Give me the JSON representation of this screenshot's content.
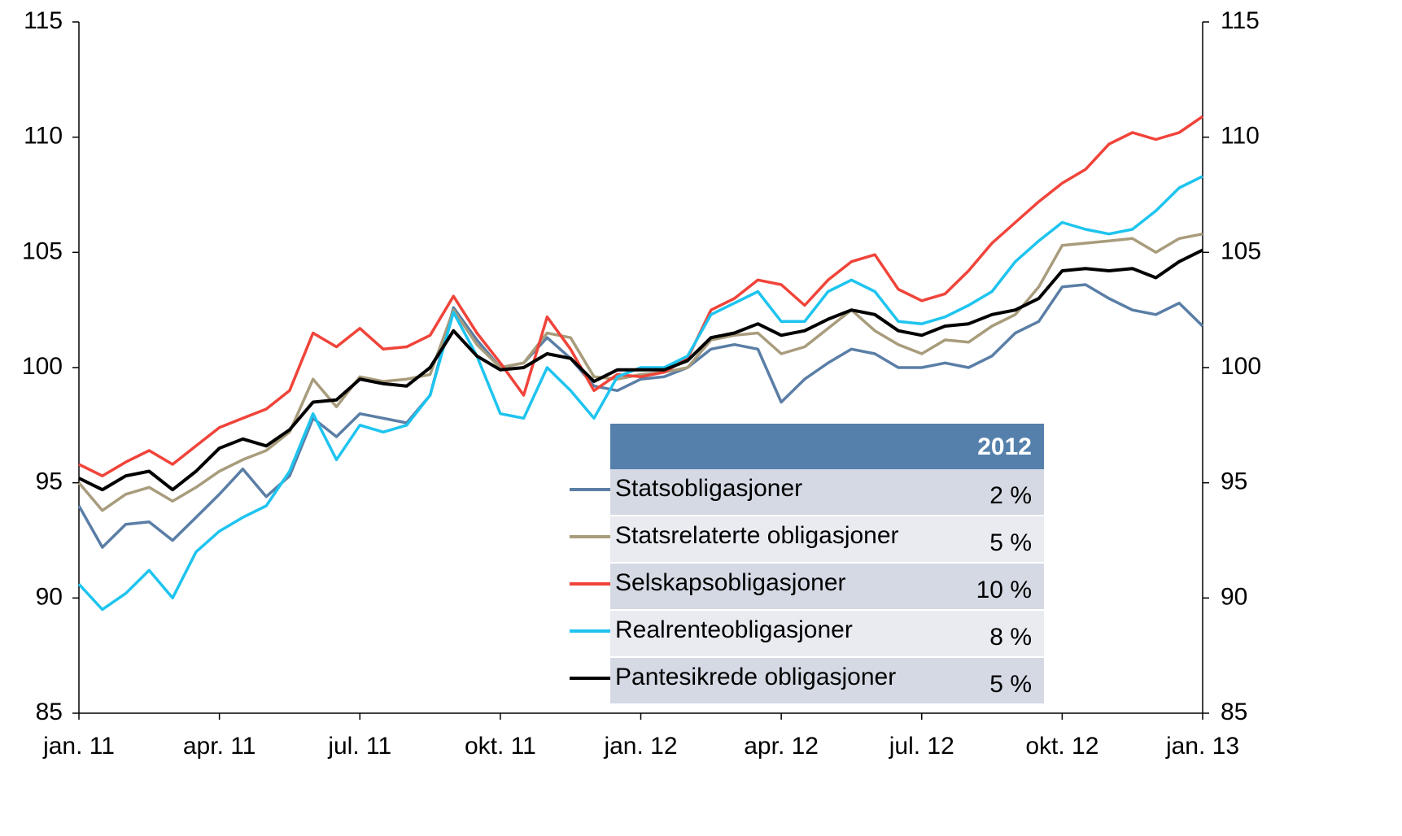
{
  "chart_data": {
    "type": "line",
    "x": [
      0,
      0.5,
      1,
      1.5,
      2,
      2.5,
      3,
      3.5,
      4,
      4.5,
      5,
      5.5,
      6,
      6.5,
      7,
      7.5,
      8,
      8.5,
      9,
      9.5,
      10,
      10.5,
      11,
      11.5,
      12,
      12.5,
      13,
      13.5,
      14,
      14.5,
      15,
      15.5,
      16,
      16.5,
      17,
      17.5,
      18,
      18.5,
      19,
      19.5,
      20,
      20.5,
      21,
      21.5,
      22,
      22.5,
      23,
      23.5,
      24
    ],
    "xlim": [
      0,
      24
    ],
    "xticks": [
      {
        "value": 0,
        "label": "jan. 11"
      },
      {
        "value": 3,
        "label": "apr. 11"
      },
      {
        "value": 6,
        "label": "jul. 11"
      },
      {
        "value": 9,
        "label": "okt. 11"
      },
      {
        "value": 12,
        "label": "jan. 12"
      },
      {
        "value": 15,
        "label": "apr. 12"
      },
      {
        "value": 18,
        "label": "jul. 12"
      },
      {
        "value": 21,
        "label": "okt. 12"
      },
      {
        "value": 24,
        "label": "jan. 13"
      }
    ],
    "ylim": [
      85,
      115
    ],
    "yticks": [
      85,
      90,
      95,
      100,
      105,
      110,
      115
    ],
    "series": [
      {
        "name": "Statsobligasjoner",
        "color": "#5a7ea6",
        "values": [
          94.0,
          92.2,
          93.2,
          93.3,
          92.5,
          93.5,
          94.5,
          95.6,
          94.4,
          95.3,
          97.8,
          97.0,
          98.0,
          97.8,
          97.6,
          98.8,
          102.6,
          101.2,
          100.0,
          100.2,
          101.3,
          100.4,
          99.2,
          99.0,
          99.5,
          99.6,
          100.0,
          100.8,
          101.0,
          100.8,
          98.5,
          99.5,
          100.2,
          100.8,
          100.6,
          100.0,
          100.0,
          100.2,
          100.0,
          100.5,
          101.5,
          102.0,
          103.5,
          103.6,
          103.0,
          102.5,
          102.3,
          102.8,
          101.8
        ]
      },
      {
        "name": "Statsrelaterte obligasjoner",
        "color": "#a89c7c",
        "values": [
          95.0,
          93.8,
          94.5,
          94.8,
          94.2,
          94.8,
          95.5,
          96.0,
          96.4,
          97.2,
          99.5,
          98.3,
          99.6,
          99.4,
          99.5,
          99.7,
          102.5,
          101.0,
          100.0,
          100.2,
          101.5,
          101.3,
          99.6,
          99.5,
          99.7,
          99.8,
          100.0,
          101.2,
          101.4,
          101.5,
          100.6,
          100.9,
          101.7,
          102.5,
          101.6,
          101.0,
          100.6,
          101.2,
          101.1,
          101.8,
          102.3,
          103.5,
          105.3,
          105.4,
          105.5,
          105.6,
          105.0,
          105.6,
          105.8
        ]
      },
      {
        "name": "Selskapsobligasjoner",
        "color": "#f0443a",
        "values": [
          95.8,
          95.3,
          95.9,
          96.4,
          95.8,
          96.6,
          97.4,
          97.8,
          98.2,
          99.0,
          101.5,
          100.9,
          101.7,
          100.8,
          100.9,
          101.4,
          103.1,
          101.5,
          100.2,
          98.8,
          102.2,
          100.8,
          99.0,
          99.7,
          99.6,
          99.8,
          100.4,
          102.5,
          103.0,
          103.8,
          103.6,
          102.7,
          103.8,
          104.6,
          104.9,
          103.4,
          102.9,
          103.2,
          104.2,
          105.4,
          106.3,
          107.2,
          108.0,
          108.6,
          109.7,
          110.2,
          109.9,
          110.2,
          110.9
        ]
      },
      {
        "name": "Realrenteobligasjoner",
        "color": "#1ec4ef",
        "values": [
          90.6,
          89.5,
          90.2,
          91.2,
          90.0,
          92.0,
          92.9,
          93.5,
          94.0,
          95.5,
          98.0,
          96.0,
          97.5,
          97.2,
          97.5,
          98.8,
          102.4,
          100.5,
          98.0,
          97.8,
          100.0,
          99.0,
          97.8,
          99.6,
          100.0,
          100.0,
          100.5,
          102.3,
          102.8,
          103.3,
          102.0,
          102.0,
          103.3,
          103.8,
          103.3,
          102.0,
          101.9,
          102.2,
          102.7,
          103.3,
          104.6,
          105.5,
          106.3,
          106.0,
          105.8,
          106.0,
          106.8,
          107.8,
          108.3
        ]
      },
      {
        "name": "Pantesikrede obligasjoner",
        "color": "#000000",
        "values": [
          95.2,
          94.7,
          95.3,
          95.5,
          94.7,
          95.5,
          96.5,
          96.9,
          96.6,
          97.3,
          98.5,
          98.6,
          99.5,
          99.3,
          99.2,
          100.0,
          101.6,
          100.5,
          99.9,
          100.0,
          100.6,
          100.4,
          99.4,
          99.9,
          99.9,
          99.9,
          100.3,
          101.3,
          101.5,
          101.9,
          101.4,
          101.6,
          102.1,
          102.5,
          102.3,
          101.6,
          101.4,
          101.8,
          101.9,
          102.3,
          102.5,
          103.0,
          104.2,
          104.3,
          104.2,
          104.3,
          103.9,
          104.6,
          105.1
        ]
      }
    ],
    "legend_table": {
      "header": "2012",
      "values": [
        2,
        5,
        10,
        8,
        5
      ],
      "value_labels": [
        "2 %",
        "5 %",
        "10 %",
        "8 %",
        "5 %"
      ]
    }
  }
}
